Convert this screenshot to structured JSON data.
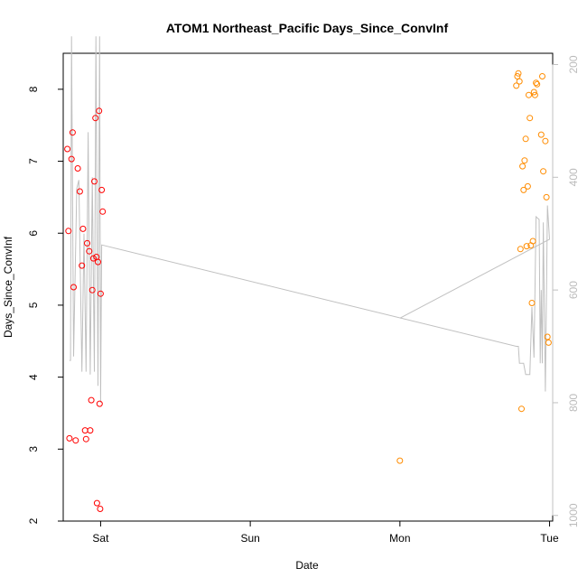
{
  "chart_data": {
    "type": "scatter",
    "title": "ATOM1 Northeast_Pacific Days_Since_ConvInf",
    "xlabel": "Date",
    "ylabel": "Days_Since_ConvInf",
    "xlim": [
      "2024-03-08T18:00",
      "2024-03-12T00:30"
    ],
    "ylim": [
      2,
      8.5
    ],
    "grid": false,
    "legend": "none",
    "x_ticks": [
      {
        "label": "Sat",
        "value": "2024-03-09T00:00"
      },
      {
        "label": "Sun",
        "value": "2024-03-10T00:00"
      },
      {
        "label": "Mon",
        "value": "2024-03-11T00:00"
      },
      {
        "label": "Tue",
        "value": "2024-03-12T00:00"
      }
    ],
    "y_ticks": [
      2,
      3,
      4,
      5,
      6,
      7,
      8
    ],
    "y2_ticks": [
      200,
      400,
      600,
      800,
      1000
    ],
    "y2lim": [
      1010,
      180
    ],
    "colors": {
      "series_a": "#ff0000",
      "series_b": "#ff8c00",
      "secondary_line": "#c0c0c0",
      "right_axis": "#c0c0c0"
    },
    "series": [
      {
        "points": [
          [
            "2024-03-08T18:40",
            7.17
          ],
          [
            "2024-03-08T18:50",
            6.03
          ],
          [
            "2024-03-08T19:00",
            3.15
          ],
          [
            "2024-03-08T19:20",
            7.03
          ],
          [
            "2024-03-08T19:30",
            7.4
          ],
          [
            "2024-03-08T19:40",
            5.25
          ],
          [
            "2024-03-08T20:00",
            3.12
          ],
          [
            "2024-03-08T20:20",
            6.9
          ],
          [
            "2024-03-08T20:40",
            6.58
          ],
          [
            "2024-03-08T21:00",
            5.55
          ],
          [
            "2024-03-08T21:10",
            6.06
          ],
          [
            "2024-03-08T21:30",
            3.26
          ],
          [
            "2024-03-08T21:40",
            3.14
          ],
          [
            "2024-03-08T21:50",
            5.86
          ],
          [
            "2024-03-08T22:10",
            5.75
          ],
          [
            "2024-03-08T22:20",
            3.26
          ],
          [
            "2024-03-08T22:30",
            3.68
          ],
          [
            "2024-03-08T22:40",
            5.21
          ],
          [
            "2024-03-08T22:50",
            5.65
          ],
          [
            "2024-03-08T23:00",
            6.72
          ],
          [
            "2024-03-08T23:10",
            7.6
          ],
          [
            "2024-03-08T23:20",
            5.67
          ],
          [
            "2024-03-08T23:25",
            2.25
          ],
          [
            "2024-03-08T23:35",
            5.6
          ],
          [
            "2024-03-08T23:45",
            7.7
          ],
          [
            "2024-03-08T23:50",
            3.63
          ],
          [
            "2024-03-08T23:55",
            2.17
          ],
          [
            "2024-03-09T00:00",
            5.16
          ],
          [
            "2024-03-09T00:10",
            6.6
          ],
          [
            "2024-03-09T00:20",
            6.3
          ]
        ]
      },
      {
        "points": [
          [
            "2024-03-11T00:00",
            2.84
          ],
          [
            "2024-03-11T18:40",
            8.05
          ],
          [
            "2024-03-11T18:50",
            8.18
          ],
          [
            "2024-03-11T19:00",
            8.22
          ],
          [
            "2024-03-11T19:10",
            8.11
          ],
          [
            "2024-03-11T19:20",
            5.78
          ],
          [
            "2024-03-11T19:30",
            3.56
          ],
          [
            "2024-03-11T19:40",
            6.93
          ],
          [
            "2024-03-11T19:50",
            6.6
          ],
          [
            "2024-03-11T20:00",
            7.01
          ],
          [
            "2024-03-11T20:10",
            7.31
          ],
          [
            "2024-03-11T20:20",
            5.82
          ],
          [
            "2024-03-11T20:30",
            6.65
          ],
          [
            "2024-03-11T20:40",
            7.92
          ],
          [
            "2024-03-11T20:50",
            7.6
          ],
          [
            "2024-03-11T21:00",
            5.83
          ],
          [
            "2024-03-11T21:10",
            5.03
          ],
          [
            "2024-03-11T21:20",
            5.89
          ],
          [
            "2024-03-11T21:30",
            7.96
          ],
          [
            "2024-03-11T21:40",
            7.92
          ],
          [
            "2024-03-11T21:50",
            8.09
          ],
          [
            "2024-03-11T22:00",
            8.07
          ],
          [
            "2024-03-11T22:40",
            7.37
          ],
          [
            "2024-03-11T22:50",
            8.18
          ],
          [
            "2024-03-11T23:00",
            6.86
          ],
          [
            "2024-03-11T23:20",
            7.28
          ],
          [
            "2024-03-11T23:30",
            6.5
          ],
          [
            "2024-03-11T23:40",
            4.56
          ],
          [
            "2024-03-11T23:50",
            4.48
          ]
        ]
      }
    ],
    "secondary_line": {
      "axis": "right",
      "points": [
        [
          "2024-03-08T19:00",
          725
        ],
        [
          "2024-03-08T19:10",
          725
        ],
        [
          "2024-03-08T19:20",
          150
        ],
        [
          "2024-03-08T19:40",
          718
        ],
        [
          "2024-03-08T20:10",
          420
        ],
        [
          "2024-03-08T20:30",
          405
        ],
        [
          "2024-03-08T21:00",
          745
        ],
        [
          "2024-03-08T21:20",
          500
        ],
        [
          "2024-03-08T21:40",
          745
        ],
        [
          "2024-03-08T22:00",
          320
        ],
        [
          "2024-03-08T22:20",
          750
        ],
        [
          "2024-03-08T22:40",
          400
        ],
        [
          "2024-03-08T23:00",
          745
        ],
        [
          "2024-03-08T23:15",
          150
        ],
        [
          "2024-03-08T23:35",
          770
        ],
        [
          "2024-03-08T23:50",
          150
        ],
        [
          "2024-03-09T00:00",
          800
        ],
        [
          "2024-03-09T00:10",
          520
        ],
        [
          "2024-03-11T18:40",
          700
        ],
        [
          "2024-03-11T19:00",
          700
        ],
        [
          "2024-03-11T19:10",
          730
        ],
        [
          "2024-03-11T19:50",
          730
        ],
        [
          "2024-03-11T20:10",
          750
        ],
        [
          "2024-03-11T20:50",
          750
        ],
        [
          "2024-03-11T21:10",
          630
        ],
        [
          "2024-03-11T21:30",
          720
        ],
        [
          "2024-03-11T21:50",
          470
        ],
        [
          "2024-03-11T22:20",
          475
        ],
        [
          "2024-03-11T22:30",
          730
        ],
        [
          "2024-03-11T22:40",
          600
        ],
        [
          "2024-03-11T22:50",
          730
        ],
        [
          "2024-03-11T23:00",
          480
        ],
        [
          "2024-03-11T23:20",
          780
        ],
        [
          "2024-03-11T23:40",
          450
        ],
        [
          "2024-03-12T00:00",
          510
        ],
        [
          "2024-03-11T00:00",
          650
        ]
      ]
    }
  }
}
